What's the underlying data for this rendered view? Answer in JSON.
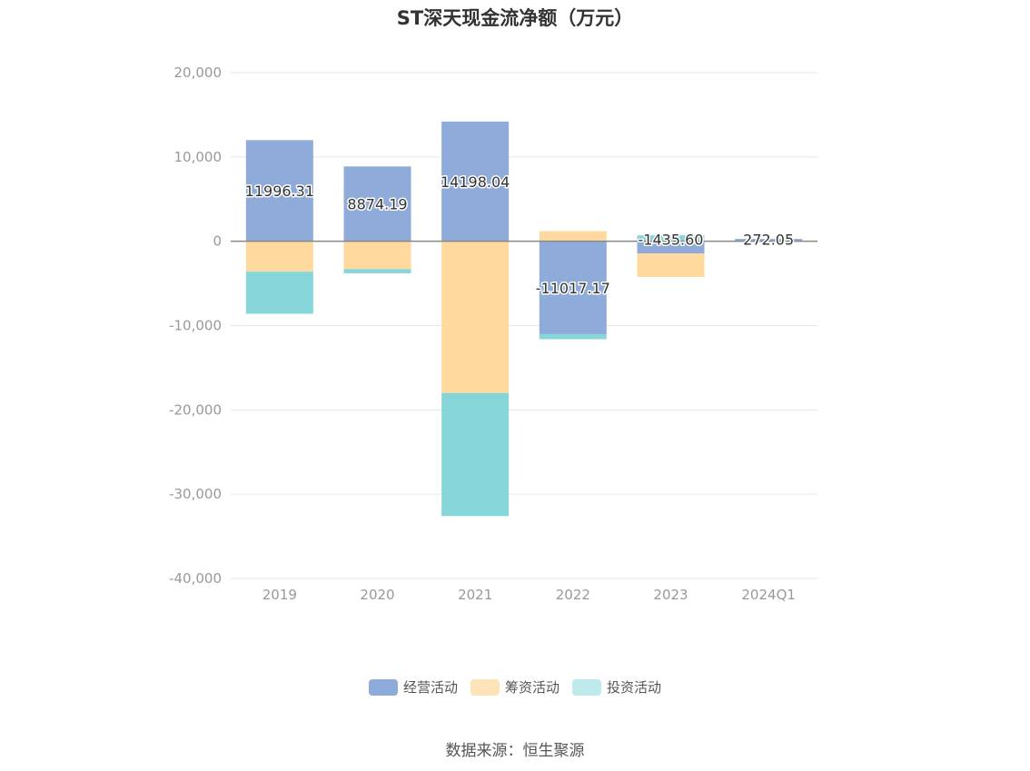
{
  "chart_data": {
    "type": "bar",
    "stacked": true,
    "title": "ST深天现金流净额（万元）",
    "categories": [
      "2019",
      "2020",
      "2021",
      "2022",
      "2023",
      "2024Q1"
    ],
    "series": [
      {
        "name": "经营活动",
        "color": "#8eabd9",
        "values": [
          11996.31,
          8874.19,
          14198.04,
          -11017.17,
          -1435.6,
          272.05
        ]
      },
      {
        "name": "筹资活动",
        "color": "#ffd99e",
        "values": [
          -3600,
          -3300,
          -18000,
          1200,
          -2800,
          0
        ]
      },
      {
        "name": "投资活动",
        "color": "#86d5d9",
        "values": [
          -5000,
          -500,
          -14600,
          -600,
          700,
          0
        ]
      }
    ],
    "data_labels": [
      "11996.31",
      "8874.19",
      "14198.04",
      "-11017.17",
      "-1435.60",
      "272.05"
    ],
    "ylim": [
      -40000,
      20000
    ],
    "yticks": [
      20000,
      10000,
      0,
      -10000,
      -20000,
      -30000,
      -40000
    ],
    "ytick_labels": [
      "20,000",
      "10,000",
      "0",
      "-10,000",
      "-20,000",
      "-30,000",
      "-40,000"
    ],
    "grid": true,
    "legend_position": "bottom",
    "legend_swatch_colors": [
      "#8eabd9",
      "#ffe3b8",
      "#bfeaec"
    ]
  },
  "source_text": "数据来源：恒生聚源"
}
